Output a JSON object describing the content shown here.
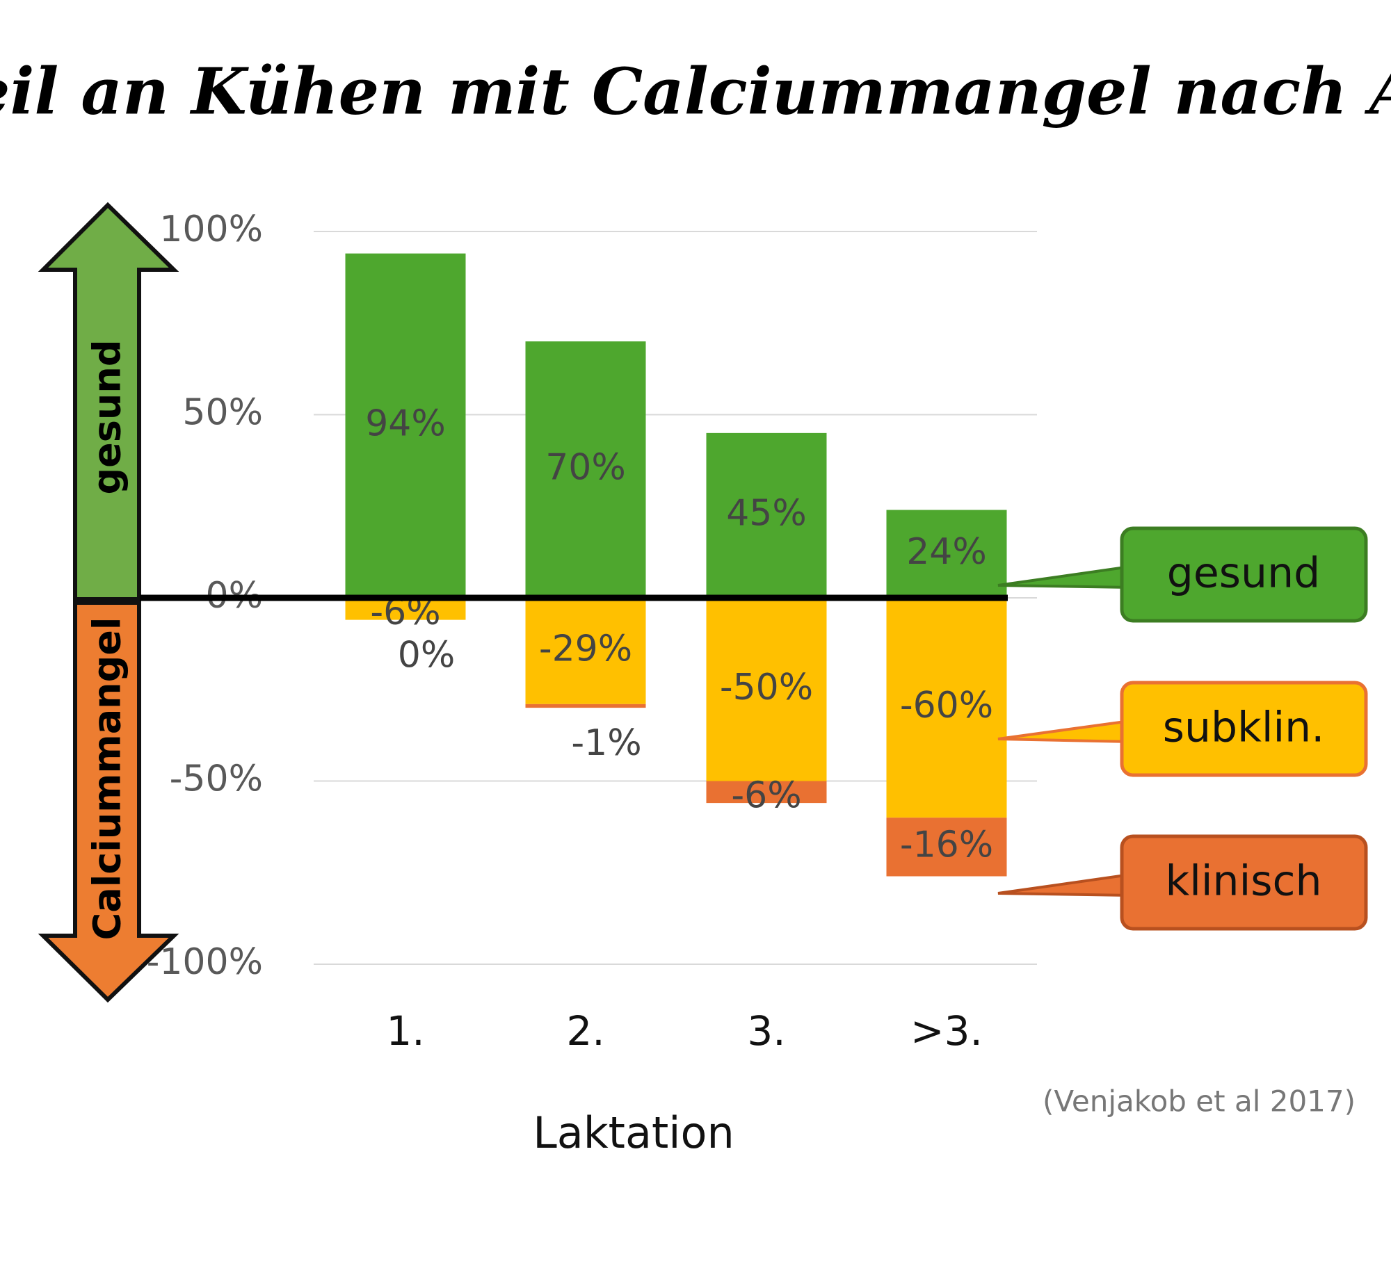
{
  "chart_data": {
    "type": "stacked_bar",
    "title": "Anteil an Kühen mit Calciummangel nach Alter",
    "x_label": "Laktation",
    "source": "(Venjakob et al 2017)",
    "axis_annotations": [
      "gesund",
      "Calciummangel"
    ],
    "categories": [
      "1.",
      "2.",
      "3.",
      ">3."
    ],
    "series": [
      {
        "name": "gesund",
        "color": "#4ea72e",
        "border": "#3c7d22",
        "values": [
          94,
          70,
          45,
          24
        ],
        "value_labels": [
          "94%",
          "70%",
          "45%",
          "24%"
        ]
      },
      {
        "name": "subklin.",
        "color": "#ffc000",
        "border": "#e97132",
        "values": [
          -6,
          -29,
          -50,
          -60
        ],
        "value_labels": [
          "-6%",
          "-29%",
          "-50%",
          "-60%"
        ]
      },
      {
        "name": "klinisch",
        "color": "#e97132",
        "border": "#b8501f",
        "values": [
          0,
          -1,
          -6,
          -16
        ],
        "value_labels": [
          "0%",
          "-1%",
          "-6%",
          "-16%"
        ]
      }
    ],
    "ylim": [
      -100,
      100
    ],
    "yticks": [
      {
        "value": -100,
        "label": "-100%"
      },
      {
        "value": -50,
        "label": "-50%"
      },
      {
        "value": 0,
        "label": "0%"
      },
      {
        "value": 50,
        "label": "50%"
      },
      {
        "value": 100,
        "label": "100%"
      }
    ],
    "grid": true
  }
}
